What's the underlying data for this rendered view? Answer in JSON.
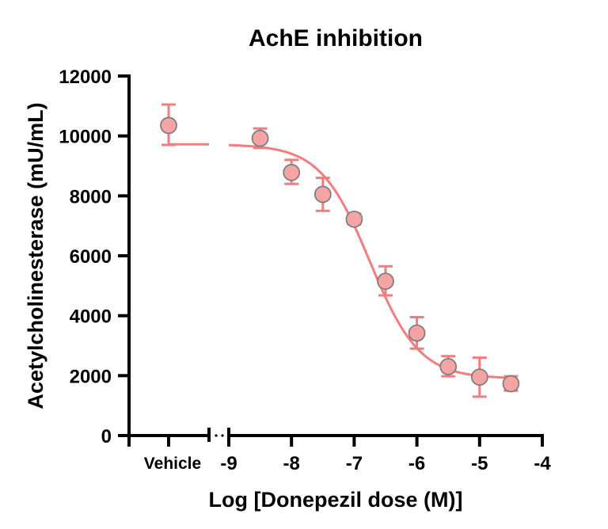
{
  "chart_data": {
    "type": "scatter",
    "title": "AchE inhibition",
    "xlabel": "Log [Donepezil dose (M)]",
    "ylabel": "Acetylcholinesterase (mU/mL)",
    "ylim": [
      0,
      12000
    ],
    "xlim": [
      -9,
      -4
    ],
    "yticks": [
      0,
      2000,
      4000,
      6000,
      8000,
      10000,
      12000
    ],
    "xticks": [
      -9,
      -8,
      -7,
      -6,
      -5,
      -4
    ],
    "vehicle_label": "Vehicle",
    "color": "#f47c7c",
    "vehicle": {
      "y": 10350,
      "err_low": 9700,
      "err_high": 11050
    },
    "points": [
      {
        "x": -8.5,
        "y": 9920,
        "err_low": 9600,
        "err_high": 10250
      },
      {
        "x": -8,
        "y": 8780,
        "err_low": 8400,
        "err_high": 9200
      },
      {
        "x": -7.5,
        "y": 8050,
        "err_low": 7500,
        "err_high": 8600
      },
      {
        "x": -7,
        "y": 7220,
        "err_low": 7050,
        "err_high": 7400
      },
      {
        "x": -6.5,
        "y": 5150,
        "err_low": 4680,
        "err_high": 5650
      },
      {
        "x": -6,
        "y": 3420,
        "err_low": 2900,
        "err_high": 3950
      },
      {
        "x": -5.5,
        "y": 2300,
        "err_low": 1980,
        "err_high": 2650
      },
      {
        "x": -5,
        "y": 1950,
        "err_low": 1300,
        "err_high": 2600
      },
      {
        "x": -4.5,
        "y": 1730,
        "err_low": 1500,
        "err_high": 1980
      }
    ],
    "fit": {
      "model": "4PL",
      "top": 9720,
      "bottom": 1900,
      "logIC50": -6.75,
      "hill": 1.1
    }
  }
}
